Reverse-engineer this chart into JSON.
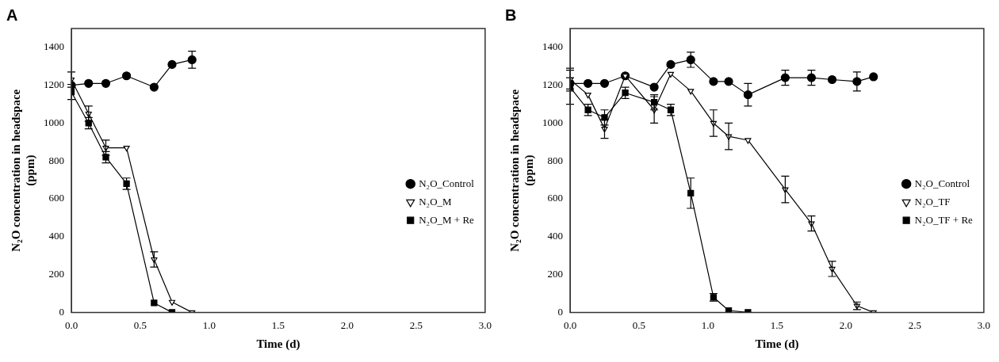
{
  "chart_data": [
    {
      "type": "line",
      "title": "A",
      "xlabel": "Time (d)",
      "ylabel": "N₂O concentration in headspace (ppm)",
      "xlim": [
        0,
        3
      ],
      "xticks": [
        {
          "value": 0,
          "label": "0.0"
        },
        0.5,
        {
          "value": 1,
          "label": "1.0"
        },
        1.5,
        {
          "value": 2,
          "label": "2.0"
        },
        2.5,
        {
          "value": 3,
          "label": "3.0"
        }
      ],
      "ylim": [
        0,
        1500
      ],
      "yticks": [
        0,
        200,
        400,
        600,
        800,
        1000,
        1200,
        1400
      ],
      "grid": false,
      "legend": "right",
      "series": [
        {
          "name": "N₂O_Control",
          "color": "#000000",
          "marker": "circle",
          "x": [
            0,
            0.125,
            0.25,
            0.4,
            0.6,
            0.73,
            0.875
          ],
          "values": [
            1200,
            1210,
            1210,
            1250,
            1190,
            1310,
            1335
          ],
          "errors": [
            null,
            null,
            null,
            null,
            null,
            null,
            45
          ]
        },
        {
          "name": "N₂O_M",
          "color": "#000000",
          "marker": "triangle",
          "x": [
            0,
            0.125,
            0.25,
            0.4,
            0.6,
            0.73,
            0.875
          ],
          "values": [
            1230,
            1050,
            870,
            870,
            280,
            55,
            0
          ],
          "errors": [
            40,
            40,
            40,
            null,
            40,
            null,
            null
          ]
        },
        {
          "name": "N₂O_M + Re",
          "color": "#000000",
          "marker": "square",
          "x": [
            0,
            0.125,
            0.25,
            0.4,
            0.6,
            0.73
          ],
          "values": [
            1165,
            1000,
            820,
            680,
            50,
            0
          ],
          "errors": [
            40,
            30,
            30,
            30,
            null,
            null
          ]
        }
      ]
    },
    {
      "type": "line",
      "title": "B",
      "xlabel": "Time (d)",
      "ylabel": "N₂O concentration in headspace (ppm)",
      "xlim": [
        0,
        3
      ],
      "xticks": [
        {
          "value": 0,
          "label": "0.0"
        },
        0.5,
        {
          "value": 1,
          "label": "1.0"
        },
        1.5,
        {
          "value": 2,
          "label": "2.0"
        },
        2.5,
        {
          "value": 3,
          "label": "3.0"
        }
      ],
      "ylim": [
        0,
        1500
      ],
      "yticks": [
        0,
        200,
        400,
        600,
        800,
        1000,
        1200,
        1400
      ],
      "grid": false,
      "legend": "right",
      "series": [
        {
          "name": "N₂O_Control",
          "color": "#000000",
          "marker": "circle",
          "x": [
            0,
            0.13,
            0.25,
            0.4,
            0.61,
            0.73,
            0.875,
            1.04,
            1.15,
            1.29,
            1.56,
            1.75,
            1.9,
            2.08,
            2.2
          ],
          "values": [
            1210,
            1210,
            1210,
            1250,
            1190,
            1310,
            1335,
            1220,
            1220,
            1150,
            1240,
            1240,
            1230,
            1220,
            1245
          ],
          "errors": [
            30,
            null,
            null,
            null,
            null,
            null,
            40,
            null,
            null,
            60,
            40,
            40,
            null,
            50,
            null
          ]
        },
        {
          "name": "N₂O_TF",
          "color": "#000000",
          "marker": "triangle",
          "x": [
            0,
            0.13,
            0.25,
            0.4,
            0.61,
            0.73,
            0.875,
            1.04,
            1.15,
            1.29,
            1.56,
            1.75,
            1.9,
            2.08,
            2.2
          ],
          "values": [
            1230,
            1150,
            970,
            1250,
            1070,
            1260,
            1170,
            1000,
            930,
            910,
            650,
            470,
            230,
            35,
            0
          ],
          "errors": [
            60,
            null,
            50,
            null,
            70,
            null,
            null,
            70,
            70,
            null,
            70,
            40,
            40,
            20,
            null
          ]
        },
        {
          "name": "N₂O_TF + Re",
          "color": "#000000",
          "marker": "square",
          "x": [
            0,
            0.13,
            0.25,
            0.4,
            0.61,
            0.73,
            0.875,
            1.04,
            1.15,
            1.29
          ],
          "values": [
            1190,
            1070,
            1030,
            1160,
            1110,
            1070,
            630,
            80,
            10,
            0
          ],
          "errors": [
            90,
            30,
            40,
            30,
            40,
            30,
            80,
            20,
            null,
            null
          ]
        }
      ]
    }
  ]
}
